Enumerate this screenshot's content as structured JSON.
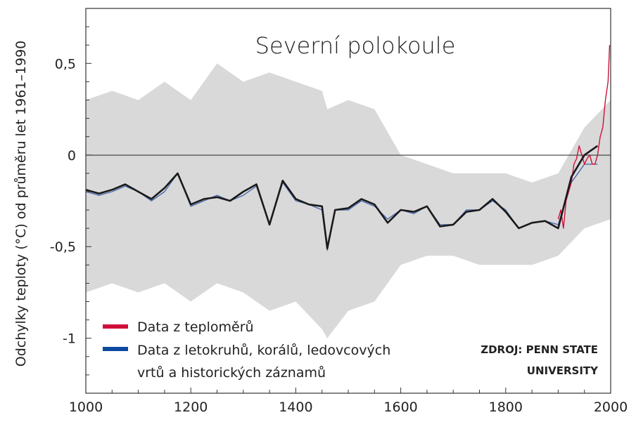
{
  "chart_data": {
    "type": "line",
    "title": "Severní polokoule",
    "ylabel": "Odchylky teploty (°C) od průměru let 1961–1990",
    "xlabel": "",
    "xlim": [
      1000,
      2000
    ],
    "ylim": [
      -1.3,
      0.8
    ],
    "x_ticks": [
      1000,
      1200,
      1400,
      1600,
      1800,
      2000
    ],
    "x_tick_labels": [
      "1000",
      "1200",
      "1400",
      "1600",
      "1800",
      "2000"
    ],
    "y_ticks": [
      0.5,
      0,
      -0.5,
      -1
    ],
    "y_tick_labels": [
      "0,5",
      "0",
      "-0,5",
      "-1"
    ],
    "grid": false,
    "zero_line": true,
    "legend_position": "bottom-left",
    "colors": {
      "thermometer": "#d0103a",
      "proxy": "#4a6aae",
      "smooth": "#1a1a1a",
      "uncertainty": "#d9d9d9"
    },
    "series": [
      {
        "name": "Data z teploměrů",
        "color": "#d0103a",
        "x": [
          1900,
          1905,
          1910,
          1915,
          1920,
          1925,
          1930,
          1935,
          1940,
          1945,
          1950,
          1955,
          1960,
          1965,
          1970,
          1975,
          1980,
          1985,
          1990,
          1995,
          1998
        ],
        "values": [
          -0.35,
          -0.3,
          -0.4,
          -0.25,
          -0.2,
          -0.15,
          -0.05,
          -0.02,
          0.05,
          0.0,
          -0.05,
          -0.02,
          0.0,
          -0.05,
          -0.05,
          0.0,
          0.1,
          0.15,
          0.3,
          0.4,
          0.6
        ]
      },
      {
        "name": "Data z letokruhů, korálů, ledovcových vrtů a historických záznamů",
        "color": "#4a6aae",
        "x": [
          1000,
          1025,
          1050,
          1075,
          1100,
          1125,
          1150,
          1175,
          1200,
          1225,
          1250,
          1275,
          1300,
          1325,
          1350,
          1375,
          1400,
          1425,
          1450,
          1460,
          1475,
          1500,
          1525,
          1550,
          1575,
          1600,
          1625,
          1650,
          1675,
          1700,
          1725,
          1750,
          1775,
          1800,
          1825,
          1850,
          1875,
          1900,
          1925,
          1950,
          1975
        ],
        "values": [
          -0.2,
          -0.22,
          -0.2,
          -0.17,
          -0.2,
          -0.25,
          -0.2,
          -0.1,
          -0.28,
          -0.25,
          -0.22,
          -0.25,
          -0.22,
          -0.17,
          -0.38,
          -0.15,
          -0.25,
          -0.27,
          -0.3,
          -0.52,
          -0.3,
          -0.3,
          -0.25,
          -0.28,
          -0.35,
          -0.3,
          -0.32,
          -0.28,
          -0.38,
          -0.38,
          -0.3,
          -0.3,
          -0.25,
          -0.3,
          -0.4,
          -0.37,
          -0.36,
          -0.38,
          -0.15,
          -0.05,
          -0.05
        ]
      },
      {
        "name": "",
        "style": "smoothed",
        "color": "#1a1a1a",
        "x": [
          1000,
          1025,
          1050,
          1075,
          1100,
          1125,
          1150,
          1175,
          1200,
          1225,
          1250,
          1275,
          1300,
          1325,
          1350,
          1375,
          1400,
          1425,
          1450,
          1460,
          1475,
          1500,
          1525,
          1550,
          1575,
          1600,
          1625,
          1650,
          1675,
          1700,
          1725,
          1750,
          1775,
          1800,
          1825,
          1850,
          1875,
          1900,
          1925,
          1950,
          1975
        ],
        "values": [
          -0.19,
          -0.21,
          -0.19,
          -0.16,
          -0.2,
          -0.24,
          -0.18,
          -0.1,
          -0.27,
          -0.24,
          -0.23,
          -0.25,
          -0.2,
          -0.16,
          -0.38,
          -0.14,
          -0.24,
          -0.27,
          -0.28,
          -0.51,
          -0.3,
          -0.29,
          -0.24,
          -0.27,
          -0.37,
          -0.3,
          -0.31,
          -0.28,
          -0.39,
          -0.38,
          -0.31,
          -0.3,
          -0.24,
          -0.31,
          -0.4,
          -0.37,
          -0.36,
          -0.4,
          -0.12,
          0.0,
          0.05
        ]
      }
    ],
    "uncertainty_band": {
      "x": [
        1000,
        1050,
        1100,
        1150,
        1200,
        1250,
        1300,
        1350,
        1400,
        1450,
        1460,
        1500,
        1550,
        1600,
        1650,
        1700,
        1750,
        1800,
        1850,
        1900,
        1950,
        2000
      ],
      "upper": [
        0.3,
        0.35,
        0.3,
        0.4,
        0.3,
        0.5,
        0.4,
        0.45,
        0.4,
        0.35,
        0.25,
        0.3,
        0.25,
        0.0,
        -0.05,
        -0.1,
        -0.1,
        -0.1,
        -0.15,
        -0.1,
        0.15,
        0.3
      ],
      "lower": [
        -0.75,
        -0.7,
        -0.75,
        -0.7,
        -0.8,
        -0.7,
        -0.75,
        -0.85,
        -0.8,
        -0.95,
        -1.0,
        -0.85,
        -0.8,
        -0.6,
        -0.55,
        -0.55,
        -0.6,
        -0.6,
        -0.6,
        -0.55,
        -0.4,
        -0.35
      ]
    },
    "legend": [
      {
        "label": "Data z teploměrů",
        "color": "#d0103a"
      },
      {
        "label": "Data z letokruhů, korálů, ledovcových",
        "label2": "vrtů a historických záznamů",
        "color": "#0b4aa0"
      }
    ],
    "source_line1": "ZDROJ: PENN STATE",
    "source_line2": "UNIVERSITY"
  }
}
